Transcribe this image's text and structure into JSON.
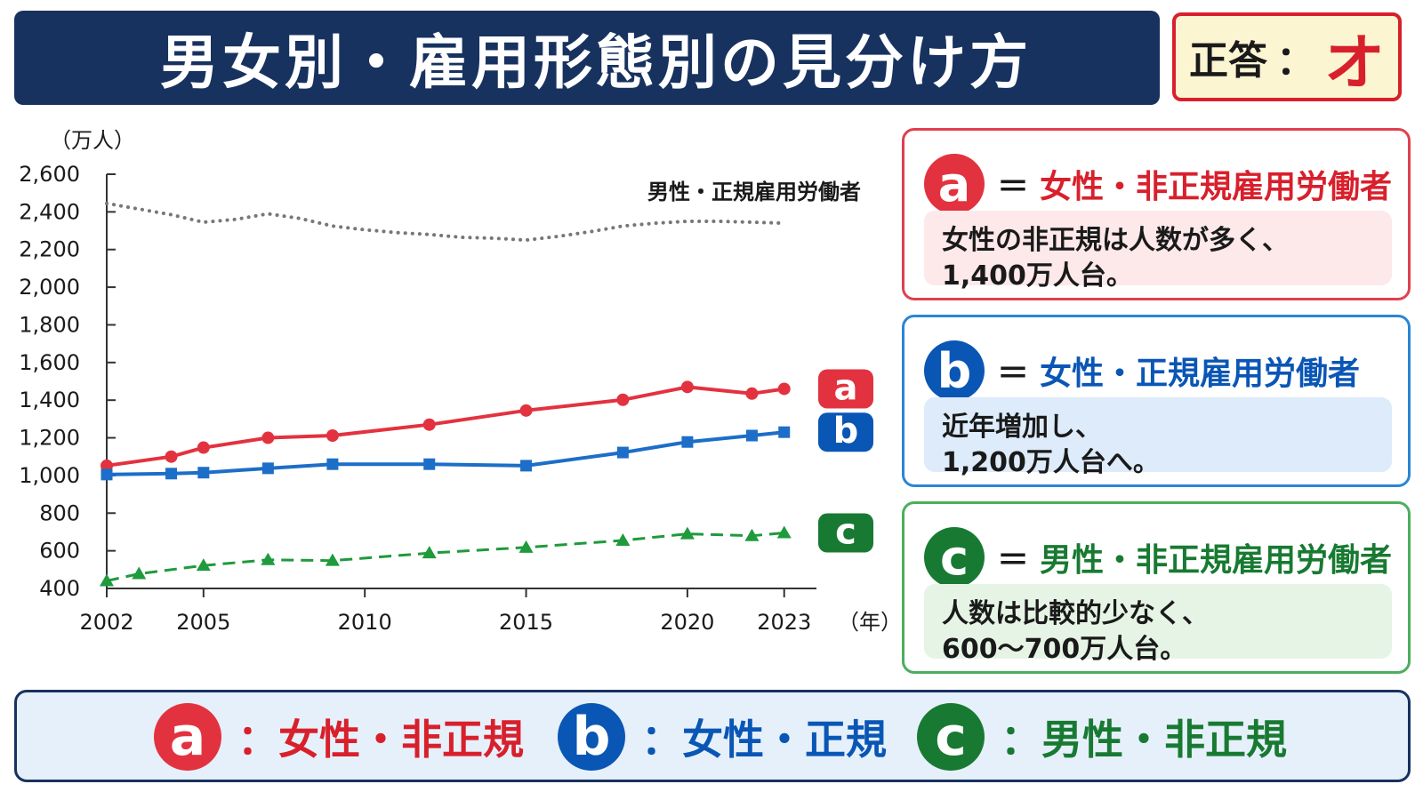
{
  "header": {
    "title": "男女別・雇用形態別の見分け方",
    "answer_label": "正答",
    "answer_colon": "：",
    "answer_value": "オ"
  },
  "chart_data": {
    "type": "line",
    "ylabel": "（万人）",
    "xlabel": "（年）",
    "ylim": [
      400,
      2600
    ],
    "yticks": [
      "2,600",
      "2,400",
      "2,200",
      "2,000",
      "1,800",
      "1,600",
      "1,400",
      "1,200",
      "1,000",
      "800",
      "600",
      "400"
    ],
    "ytick_values": [
      2600,
      2400,
      2200,
      2000,
      1800,
      1600,
      1400,
      1200,
      1000,
      800,
      600,
      400
    ],
    "xlim": [
      2002,
      2024
    ],
    "xticks": [
      "2002",
      "2005",
      "2010",
      "2015",
      "2020",
      "2023"
    ],
    "xtick_values": [
      2002,
      2005,
      2010,
      2015,
      2020,
      2023
    ],
    "grid": false,
    "series": [
      {
        "name": "男性・正規雇用労働者",
        "style": "dotted",
        "color": "#777777",
        "x": [
          2002,
          2003,
          2004,
          2005,
          2006,
          2007,
          2008,
          2009,
          2010,
          2011,
          2012,
          2013,
          2014,
          2015,
          2016,
          2017,
          2018,
          2019,
          2020,
          2021,
          2022,
          2023
        ],
        "values": [
          2445,
          2415,
          2385,
          2345,
          2360,
          2390,
          2365,
          2325,
          2305,
          2290,
          2280,
          2265,
          2260,
          2250,
          2270,
          2295,
          2325,
          2340,
          2350,
          2350,
          2345,
          2340
        ]
      },
      {
        "key": "a",
        "style": "solid-circle",
        "color": "#e3323f",
        "x": [
          2002,
          2004,
          2005,
          2007,
          2009,
          2012,
          2015,
          2018,
          2020,
          2022,
          2023
        ],
        "values": [
          1052,
          1100,
          1148,
          1200,
          1212,
          1270,
          1345,
          1402,
          1470,
          1435,
          1460
        ]
      },
      {
        "key": "b",
        "style": "solid-square",
        "color": "#1c6ec8",
        "x": [
          2002,
          2004,
          2005,
          2007,
          2009,
          2012,
          2015,
          2018,
          2020,
          2022,
          2023
        ],
        "values": [
          1005,
          1010,
          1015,
          1038,
          1060,
          1060,
          1052,
          1122,
          1178,
          1212,
          1230
        ]
      },
      {
        "key": "c",
        "style": "dashed-triangle",
        "color": "#1f9a3c",
        "x": [
          2002,
          2003,
          2005,
          2007,
          2009,
          2012,
          2015,
          2018,
          2020,
          2022,
          2023
        ],
        "values": [
          440,
          478,
          522,
          552,
          548,
          588,
          618,
          655,
          690,
          680,
          695
        ]
      }
    ],
    "annotations": [
      {
        "text": "男性・正規雇用労働者",
        "for": "dotted-series"
      }
    ],
    "series_badges": [
      {
        "key": "a",
        "label": "a",
        "color": "#e3323f"
      },
      {
        "key": "b",
        "label": "b",
        "color": "#0a56b5"
      },
      {
        "key": "c",
        "label": "c",
        "color": "#187a32"
      }
    ]
  },
  "cards": [
    {
      "key": "a",
      "badge": "a",
      "eq": "＝",
      "title": "女性・非正規雇用労働者",
      "line1": "女性の非正規は人数が多く、",
      "line2": "1,400万人台。"
    },
    {
      "key": "b",
      "badge": "b",
      "eq": "＝",
      "title": "女性・正規雇用労働者",
      "line1": "近年増加し、",
      "line2": "1,200万人台へ。"
    },
    {
      "key": "c",
      "badge": "c",
      "eq": "＝",
      "title": "男性・非正規雇用労働者",
      "line1": "人数は比較的少なく、",
      "line2": "600〜700万人台。"
    }
  ],
  "legend": [
    {
      "badge": "a",
      "text": "：女性・非正規"
    },
    {
      "badge": "b",
      "text": "：女性・正規"
    },
    {
      "badge": "c",
      "text": "：男性・非正規"
    }
  ]
}
